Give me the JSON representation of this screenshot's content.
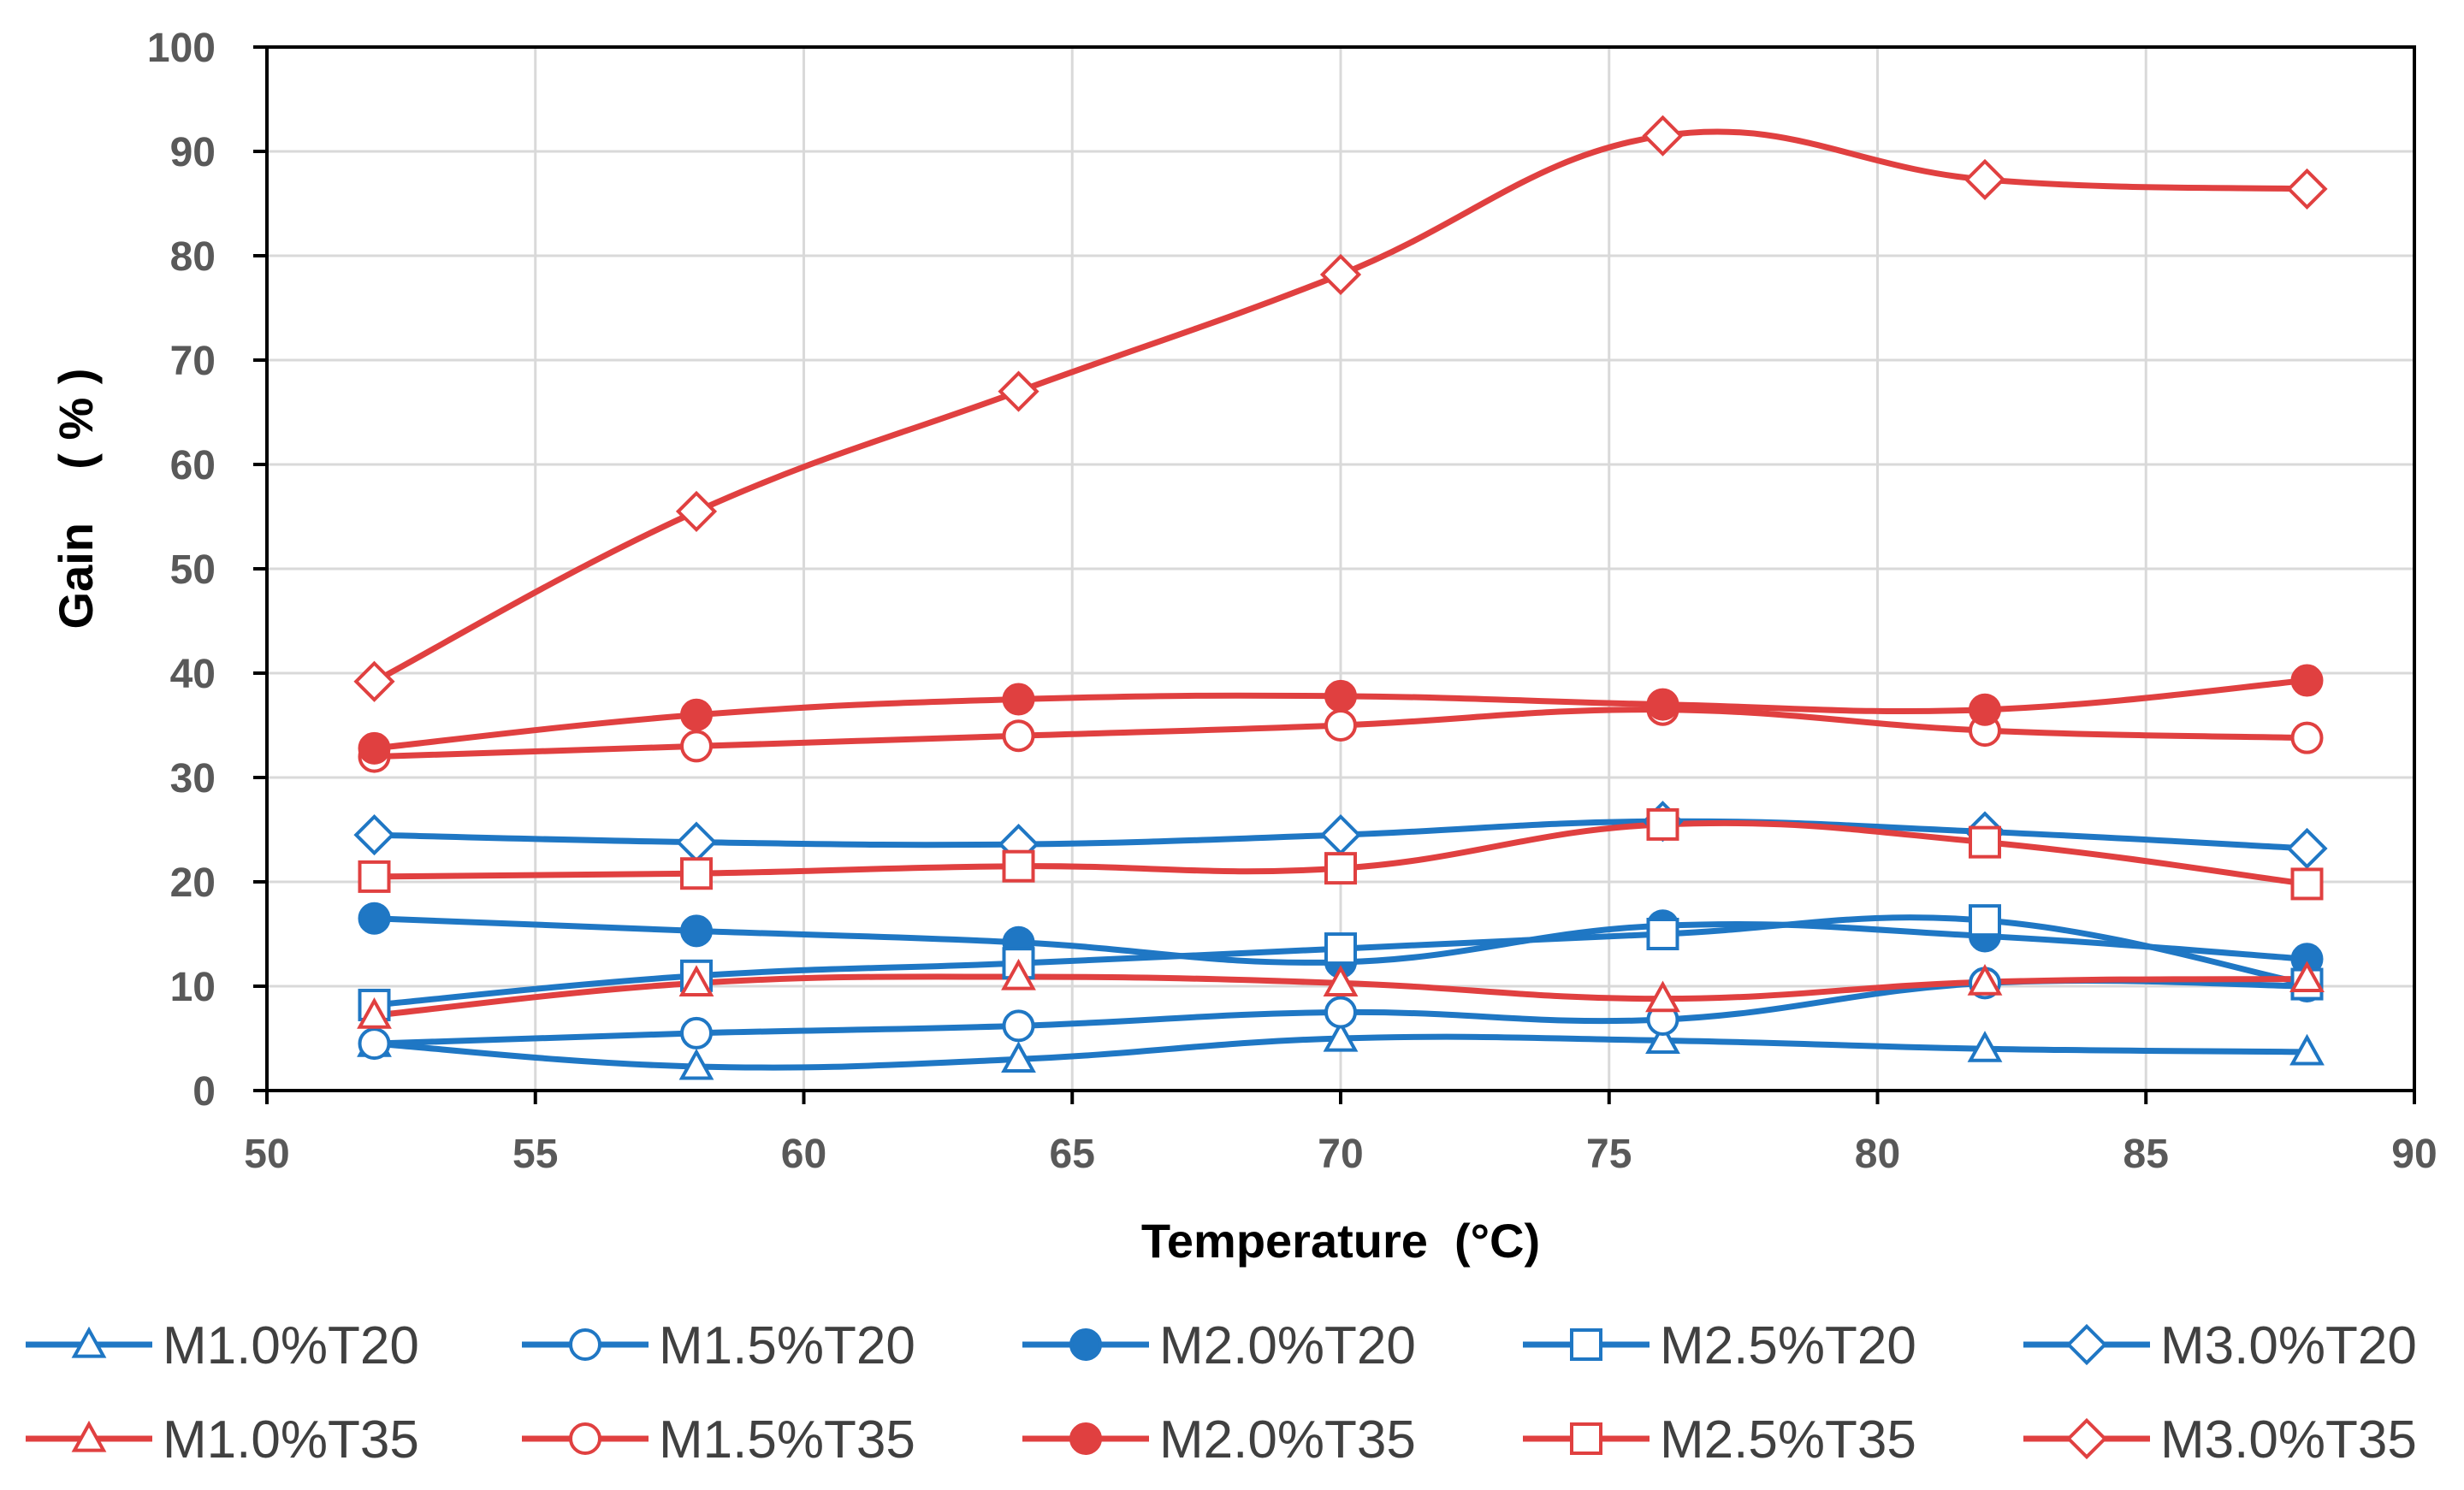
{
  "chart_data": {
    "type": "line",
    "title": "",
    "xlabel": "Temperature  (°C)",
    "ylabel": "Gain    ( % )",
    "xlim": [
      50,
      90
    ],
    "ylim": [
      0,
      100
    ],
    "xticks": [
      "50",
      "55",
      "60",
      "65",
      "70",
      "75",
      "80",
      "85",
      "90"
    ],
    "yticks": [
      "0",
      "10",
      "20",
      "30",
      "40",
      "50",
      "60",
      "70",
      "80",
      "90",
      "100"
    ],
    "grid": true,
    "legend_position": "bottom",
    "x": [
      52,
      58,
      64,
      70,
      76,
      82,
      88
    ],
    "series": [
      {
        "name": "M1.0%T20",
        "color": "#1f77c4",
        "marker": "triangle",
        "values": [
          4.5,
          2.3,
          3.0,
          5.0,
          4.8,
          4.0,
          3.7
        ]
      },
      {
        "name": "M1.5%T20",
        "color": "#1f77c4",
        "marker": "circle",
        "values": [
          4.5,
          5.5,
          6.2,
          7.5,
          6.8,
          10.3,
          10.0
        ]
      },
      {
        "name": "M2.0%T20",
        "color": "#1f77c4",
        "marker": "filled-circle",
        "values": [
          16.5,
          15.3,
          14.2,
          12.3,
          15.8,
          14.8,
          12.6
        ]
      },
      {
        "name": "M2.5%T20",
        "color": "#1f77c4",
        "marker": "square",
        "values": [
          8.2,
          11.0,
          12.2,
          13.6,
          15.0,
          16.3,
          10.2
        ]
      },
      {
        "name": "M3.0%T20",
        "color": "#1f77c4",
        "marker": "diamond",
        "values": [
          24.5,
          23.8,
          23.6,
          24.5,
          25.8,
          24.8,
          23.2
        ]
      },
      {
        "name": "M1.0%T35",
        "color": "#e04040",
        "marker": "triangle",
        "values": [
          7.2,
          10.3,
          10.9,
          10.3,
          8.8,
          10.4,
          10.7
        ]
      },
      {
        "name": "M1.5%T35",
        "color": "#e04040",
        "marker": "circle",
        "values": [
          32.0,
          33.0,
          34.0,
          35.0,
          36.5,
          34.5,
          33.8
        ]
      },
      {
        "name": "M2.0%T35",
        "color": "#e04040",
        "marker": "filled-circle",
        "values": [
          32.8,
          36.0,
          37.5,
          37.8,
          37.0,
          36.5,
          39.3
        ]
      },
      {
        "name": "M2.5%T35",
        "color": "#e04040",
        "marker": "square",
        "values": [
          20.5,
          20.8,
          21.5,
          21.3,
          25.5,
          23.8,
          19.8
        ]
      },
      {
        "name": "M3.0%T35",
        "color": "#e04040",
        "marker": "diamond",
        "values": [
          39.2,
          55.5,
          67.0,
          78.2,
          91.5,
          87.3,
          86.4
        ]
      }
    ]
  }
}
